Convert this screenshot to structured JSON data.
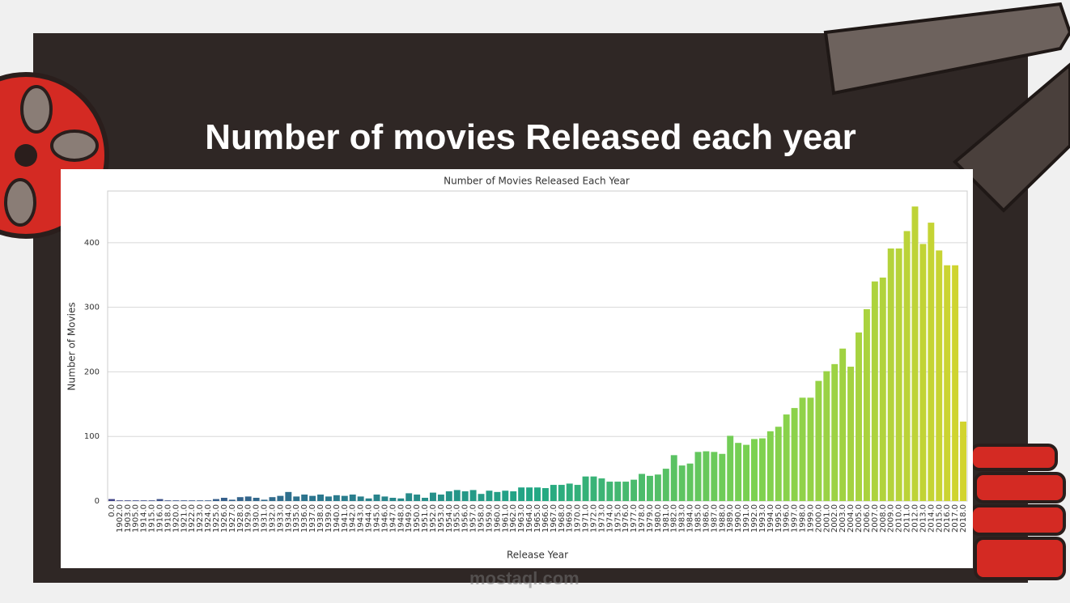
{
  "slide": {
    "title": "Number of movies Released each year",
    "watermark": "mostaql.com"
  },
  "chart_data": {
    "type": "bar",
    "title": "Number of Movies Released Each Year",
    "x_label": "Release Year",
    "y_label": "Number of Movies",
    "categories": [
      "0.0",
      "1902.0",
      "1903.0",
      "1905.0",
      "1914.0",
      "1915.0",
      "1916.0",
      "1918.0",
      "1920.0",
      "1921.0",
      "1922.0",
      "1923.0",
      "1924.0",
      "1925.0",
      "1926.0",
      "1927.0",
      "1928.0",
      "1929.0",
      "1930.0",
      "1931.0",
      "1932.0",
      "1933.0",
      "1934.0",
      "1935.0",
      "1936.0",
      "1937.0",
      "1938.0",
      "1939.0",
      "1940.0",
      "1941.0",
      "1942.0",
      "1943.0",
      "1944.0",
      "1945.0",
      "1946.0",
      "1947.0",
      "1948.0",
      "1949.0",
      "1950.0",
      "1951.0",
      "1952.0",
      "1953.0",
      "1954.0",
      "1955.0",
      "1956.0",
      "1957.0",
      "1958.0",
      "1959.0",
      "1960.0",
      "1961.0",
      "1962.0",
      "1963.0",
      "1964.0",
      "1965.0",
      "1966.0",
      "1967.0",
      "1968.0",
      "1969.0",
      "1970.0",
      "1971.0",
      "1972.0",
      "1973.0",
      "1974.0",
      "1975.0",
      "1976.0",
      "1977.0",
      "1978.0",
      "1979.0",
      "1980.0",
      "1981.0",
      "1982.0",
      "1983.0",
      "1984.0",
      "1985.0",
      "1986.0",
      "1987.0",
      "1988.0",
      "1989.0",
      "1990.0",
      "1991.0",
      "1992.0",
      "1993.0",
      "1994.0",
      "1995.0",
      "1996.0",
      "1997.0",
      "1998.0",
      "1999.0",
      "2000.0",
      "2001.0",
      "2002.0",
      "2003.0",
      "2004.0",
      "2005.0",
      "2006.0",
      "2007.0",
      "2008.0",
      "2009.0",
      "2010.0",
      "2011.0",
      "2012.0",
      "2013.0",
      "2014.0",
      "2015.0",
      "2016.0",
      "2017.0",
      "2018.0"
    ],
    "values": [
      3,
      1,
      1,
      1,
      1,
      1,
      3,
      1,
      1,
      1,
      1,
      1,
      1,
      3,
      5,
      2,
      6,
      7,
      5,
      2,
      6,
      8,
      14,
      7,
      10,
      8,
      10,
      7,
      9,
      8,
      10,
      7,
      4,
      10,
      7,
      5,
      4,
      12,
      10,
      5,
      13,
      10,
      15,
      17,
      15,
      17,
      11,
      16,
      14,
      16,
      15,
      21,
      21,
      21,
      20,
      25,
      25,
      27,
      25,
      38,
      38,
      35,
      30,
      30,
      30,
      33,
      42,
      39,
      41,
      50,
      71,
      55,
      58,
      76,
      77,
      76,
      73,
      101,
      90,
      87,
      96,
      97,
      108,
      115,
      134,
      144,
      160,
      160,
      186,
      201,
      212,
      236,
      208,
      261,
      297,
      340,
      346,
      391,
      391,
      418,
      456,
      398,
      431,
      388,
      365,
      365,
      123
    ],
    "palette": [
      "#414487",
      "#2a788e",
      "#22a884",
      "#7ad151",
      "#d2d42f"
    ],
    "ylim": [
      0,
      480
    ],
    "yticks": [
      0,
      100,
      200,
      300,
      400
    ],
    "grid": true
  }
}
